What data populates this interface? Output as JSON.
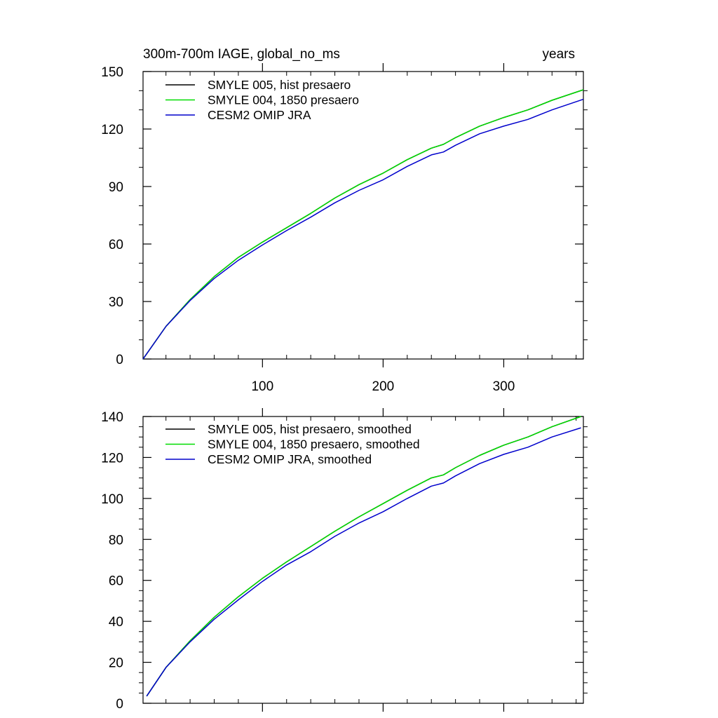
{
  "chart_data": [
    {
      "type": "line",
      "title": "300m-700m IAGE, global_no_ms",
      "title_right": "years",
      "xlim": [
        1,
        366
      ],
      "ylim": [
        0,
        150
      ],
      "x_ticks": [
        100,
        200,
        300
      ],
      "x_tick_labels": [
        "100",
        "200",
        "300"
      ],
      "y_ticks": [
        0,
        30,
        60,
        90,
        120,
        150
      ],
      "y_tick_labels": [
        "0",
        "30",
        "60",
        "90",
        "120",
        "150"
      ],
      "x_minor_step": 20,
      "y_minor_step": 10,
      "grid": false,
      "legend_position": "top-left",
      "series": [
        {
          "name": "SMYLE 005, hist presaero",
          "color": "#000000",
          "x": [
            1,
            20,
            40,
            60,
            80,
            100,
            120,
            140,
            160,
            180,
            200,
            220,
            240,
            250,
            260,
            280,
            300,
            320,
            340,
            366
          ],
          "y": [
            0,
            17,
            31,
            43,
            53,
            61,
            68.5,
            76,
            84,
            91,
            97,
            104,
            110,
            112,
            115.5,
            121.5,
            126,
            130,
            135,
            140.5
          ]
        },
        {
          "name": "SMYLE 004, 1850 presaero",
          "color": "#00dd00",
          "x": [
            1,
            20,
            40,
            60,
            80,
            100,
            120,
            140,
            160,
            180,
            200,
            220,
            240,
            250,
            260,
            280,
            300,
            320,
            340,
            366
          ],
          "y": [
            0,
            17,
            31,
            43,
            53,
            61,
            68.5,
            76,
            84,
            91,
            97,
            104,
            110,
            112,
            115.5,
            121.5,
            126,
            130,
            135,
            140.5
          ]
        },
        {
          "name": "CESM2 OMIP JRA",
          "color": "#0000cc",
          "x": [
            1,
            20,
            40,
            60,
            80,
            100,
            120,
            140,
            160,
            180,
            200,
            220,
            240,
            250,
            260,
            280,
            300,
            320,
            340,
            366
          ],
          "y": [
            0,
            17,
            30.5,
            42,
            51.5,
            59.5,
            67,
            74,
            81.5,
            88,
            93.5,
            100.5,
            106.5,
            108,
            111.5,
            117.5,
            121.5,
            125,
            130,
            135.5
          ]
        }
      ]
    },
    {
      "type": "line",
      "title": "",
      "xlim": [
        1,
        366
      ],
      "ylim": [
        0,
        140
      ],
      "x_ticks": [
        100,
        200,
        300
      ],
      "x_tick_labels": [],
      "y_ticks": [
        0,
        20,
        40,
        60,
        80,
        100,
        120,
        140
      ],
      "y_tick_labels": [
        "0",
        "20",
        "40",
        "60",
        "80",
        "100",
        "120",
        "140"
      ],
      "x_minor_step": 20,
      "y_minor_step": 5,
      "grid": false,
      "legend_position": "top-left",
      "series": [
        {
          "name": "SMYLE 005, hist presaero, smoothed",
          "color": "#000000",
          "x": [
            4,
            20,
            40,
            60,
            80,
            100,
            120,
            140,
            160,
            180,
            200,
            220,
            240,
            250,
            260,
            280,
            300,
            320,
            340,
            364
          ],
          "y": [
            3.5,
            17.5,
            30.5,
            42,
            52,
            61,
            69,
            76.5,
            84,
            91,
            97.5,
            104,
            110,
            111.5,
            115,
            121,
            126,
            130,
            135,
            140
          ]
        },
        {
          "name": "SMYLE 004, 1850 presaero, smoothed",
          "color": "#00dd00",
          "x": [
            4,
            20,
            40,
            60,
            80,
            100,
            120,
            140,
            160,
            180,
            200,
            220,
            240,
            250,
            260,
            280,
            300,
            320,
            340,
            364
          ],
          "y": [
            3.5,
            17.5,
            30.5,
            42,
            52,
            61,
            69,
            76.5,
            84,
            91,
            97.5,
            104,
            110,
            111.5,
            115,
            121,
            126,
            130,
            135,
            140
          ]
        },
        {
          "name": "CESM2 OMIP JRA, smoothed",
          "color": "#0000cc",
          "x": [
            4,
            20,
            40,
            60,
            80,
            100,
            120,
            140,
            160,
            180,
            200,
            220,
            240,
            250,
            260,
            280,
            300,
            320,
            340,
            364
          ],
          "y": [
            3.5,
            17.5,
            30,
            41,
            50.5,
            59.5,
            67.5,
            74,
            81.5,
            88,
            93.5,
            100,
            106,
            107.5,
            111,
            117,
            121.5,
            125,
            130,
            134.5
          ]
        }
      ]
    }
  ]
}
